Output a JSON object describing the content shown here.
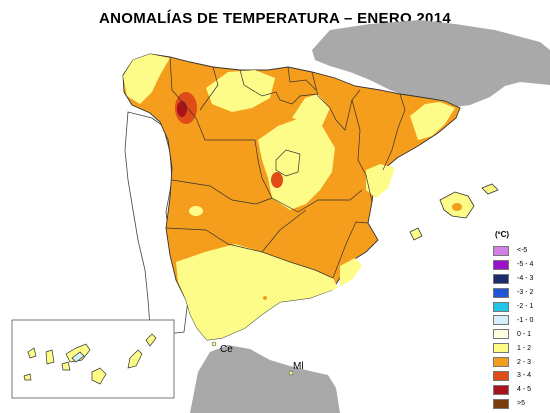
{
  "title": "ANOMALÍAS DE TEMPERATURA – ENERO 2014",
  "legend": {
    "unit": "(ºC)",
    "items": [
      {
        "label": "<-5",
        "color": "#d27ee6"
      },
      {
        "label": "-5 - 4",
        "color": "#9b11c9"
      },
      {
        "label": "-4 - 3",
        "color": "#1c2b6b"
      },
      {
        "label": "-3 - 2",
        "color": "#1f56d6"
      },
      {
        "label": "-2 - 1",
        "color": "#22c6e8"
      },
      {
        "label": "-1 - 0",
        "color": "#d4effa"
      },
      {
        "label": "0 - 1",
        "color": "#fffee0"
      },
      {
        "label": "1 - 2",
        "color": "#fdfc88"
      },
      {
        "label": "2 - 3",
        "color": "#f59d1c"
      },
      {
        "label": "3 - 4",
        "color": "#df4c17"
      },
      {
        "label": "4 - 5",
        "color": "#a8141a"
      },
      {
        "label": ">5",
        "color": "#7a3e0c"
      }
    ]
  },
  "places": {
    "ceuta": "Ce",
    "melilla": "Ml"
  }
}
